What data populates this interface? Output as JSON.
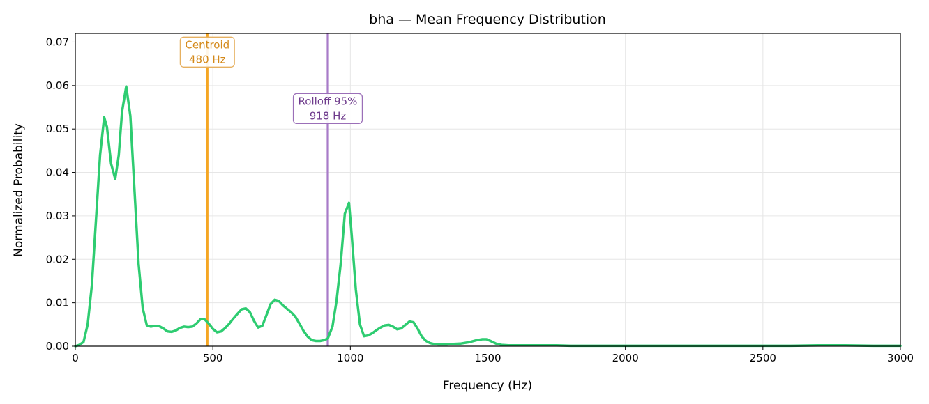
{
  "chart_data": {
    "type": "line",
    "title": "bha  —  Mean Frequency Distribution",
    "xlabel": "Frequency (Hz)",
    "ylabel": "Normalized Probability",
    "xlim": [
      0,
      3000
    ],
    "ylim": [
      0,
      0.072
    ],
    "xticks": [
      0,
      500,
      1000,
      1500,
      2000,
      2500,
      3000
    ],
    "xtick_labels": [
      "0",
      "500",
      "1000",
      "1500",
      "2000",
      "2500",
      "3000"
    ],
    "yticks": [
      0.0,
      0.01,
      0.02,
      0.03,
      0.04,
      0.05,
      0.06,
      0.07
    ],
    "ytick_labels": [
      "0.00",
      "0.01",
      "0.02",
      "0.03",
      "0.04",
      "0.05",
      "0.06",
      "0.07"
    ],
    "grid": true,
    "series": [
      {
        "color": "#2ecc71",
        "x": [
          0,
          15,
          30,
          45,
          60,
          75,
          90,
          105,
          115,
          130,
          145,
          158,
          170,
          185,
          200,
          215,
          230,
          245,
          260,
          275,
          290,
          305,
          320,
          335,
          350,
          365,
          380,
          395,
          410,
          425,
          440,
          455,
          470,
          485,
          500,
          515,
          530,
          545,
          560,
          575,
          590,
          605,
          620,
          635,
          650,
          665,
          680,
          695,
          710,
          725,
          740,
          755,
          770,
          785,
          800,
          815,
          830,
          845,
          860,
          875,
          890,
          905,
          918,
          935,
          950,
          965,
          980,
          995,
          1005,
          1020,
          1035,
          1050,
          1065,
          1080,
          1095,
          1110,
          1125,
          1140,
          1155,
          1170,
          1185,
          1200,
          1215,
          1230,
          1245,
          1260,
          1275,
          1290,
          1305,
          1320,
          1335,
          1350,
          1370,
          1400,
          1430,
          1460,
          1480,
          1495,
          1510,
          1530,
          1550,
          1575,
          1600,
          1650,
          1700,
          1750,
          1800,
          1900,
          2000,
          2200,
          2400,
          2600,
          2700,
          2800,
          2900,
          3000
        ],
        "y": [
          0.0,
          0.0003,
          0.001,
          0.005,
          0.014,
          0.029,
          0.044,
          0.0527,
          0.0505,
          0.042,
          0.0385,
          0.044,
          0.054,
          0.0598,
          0.053,
          0.036,
          0.019,
          0.0088,
          0.0048,
          0.0045,
          0.0047,
          0.0046,
          0.0041,
          0.0034,
          0.0033,
          0.0036,
          0.0042,
          0.0045,
          0.0044,
          0.0045,
          0.0052,
          0.0062,
          0.0062,
          0.0052,
          0.004,
          0.0032,
          0.0034,
          0.0042,
          0.0052,
          0.0064,
          0.0075,
          0.0085,
          0.0087,
          0.0078,
          0.0058,
          0.0043,
          0.0047,
          0.0072,
          0.0097,
          0.0107,
          0.0104,
          0.0094,
          0.0086,
          0.0078,
          0.0068,
          0.0052,
          0.0035,
          0.0022,
          0.0014,
          0.0012,
          0.0012,
          0.0014,
          0.0018,
          0.0045,
          0.0105,
          0.019,
          0.0305,
          0.033,
          0.0255,
          0.013,
          0.005,
          0.0023,
          0.0025,
          0.003,
          0.0037,
          0.0043,
          0.0048,
          0.0049,
          0.0045,
          0.0039,
          0.0041,
          0.0049,
          0.0057,
          0.0055,
          0.004,
          0.0022,
          0.0012,
          0.0007,
          0.0005,
          0.0004,
          0.0004,
          0.0004,
          0.0005,
          0.0006,
          0.0009,
          0.0014,
          0.0016,
          0.0016,
          0.0012,
          0.0006,
          0.0003,
          0.0002,
          0.0002,
          0.0002,
          0.0002,
          0.0002,
          0.0001,
          0.0001,
          0.0001,
          0.0001,
          0.0001,
          0.0001,
          0.0002,
          0.0002,
          0.0001,
          0.0001
        ]
      }
    ],
    "vlines": [
      {
        "x": 480,
        "color": "#f5a623",
        "label_line1": "Centroid",
        "label_line2": "480 Hz",
        "text_color": "#d4891a",
        "border_color": "#e6b060",
        "label_y": 0.0665
      },
      {
        "x": 918,
        "color": "#a87bc8",
        "label_line1": "Rolloff 95%",
        "label_line2": "918 Hz",
        "text_color": "#6e3b8c",
        "border_color": "#9b6fb8",
        "label_y": 0.0535
      }
    ]
  }
}
